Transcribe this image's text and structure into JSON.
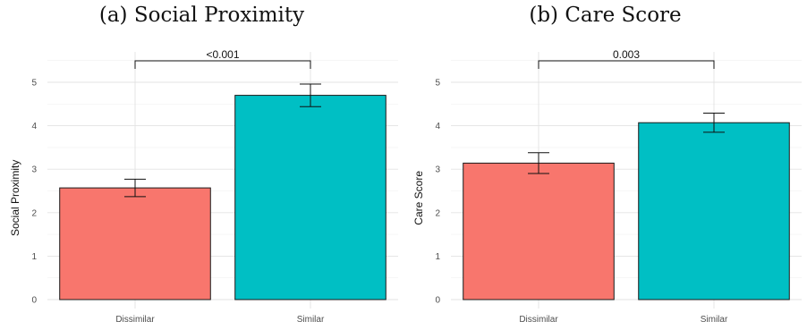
{
  "chart_data": [
    {
      "type": "bar",
      "title": "(a) Social Proximity",
      "xlabel": "",
      "ylabel": "Social Proximity",
      "categories": [
        "Dissimilar",
        "Similar"
      ],
      "values": [
        2.57,
        4.7
      ],
      "error_low": [
        2.37,
        4.44
      ],
      "error_high": [
        2.77,
        4.96
      ],
      "colors": [
        "#F8766D",
        "#00BFC4"
      ],
      "ylim": [
        0,
        5.5
      ],
      "yticks": [
        "0",
        "1",
        "2",
        "3",
        "4",
        "5"
      ],
      "significance": "<0.001",
      "grid": true
    },
    {
      "type": "bar",
      "title": "(b) Care Score",
      "xlabel": "",
      "ylabel": "Care Score",
      "categories": [
        "Dissimilar",
        "Similar"
      ],
      "values": [
        3.14,
        4.07
      ],
      "error_low": [
        2.9,
        3.85
      ],
      "error_high": [
        3.38,
        4.29
      ],
      "colors": [
        "#F8766D",
        "#00BFC4"
      ],
      "ylim": [
        0,
        5.5
      ],
      "yticks": [
        "0",
        "1",
        "2",
        "3",
        "4",
        "5"
      ],
      "significance": "0.003",
      "grid": true
    }
  ]
}
